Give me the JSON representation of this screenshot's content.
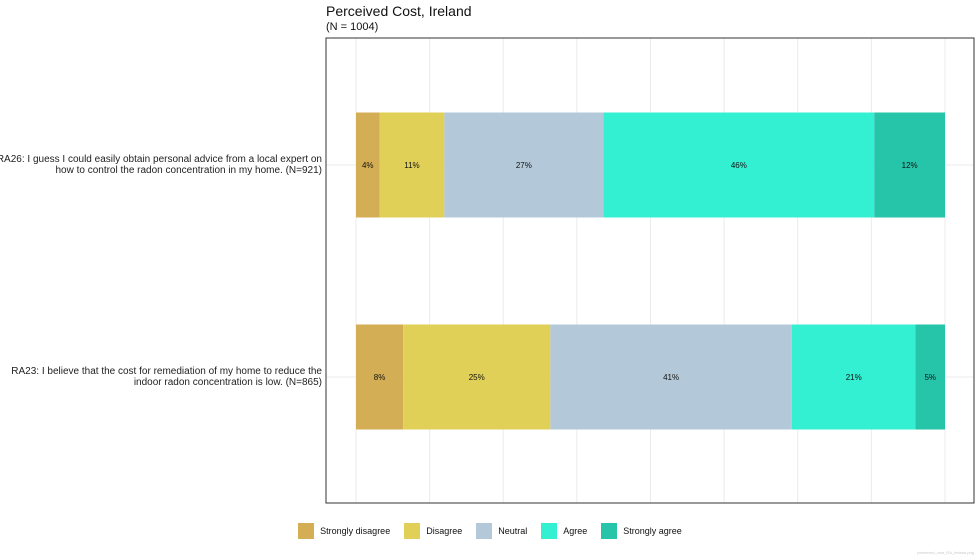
{
  "chart_data": {
    "type": "bar",
    "orientation": "horizontal",
    "stacked": true,
    "title": "Perceived Cost, Ireland",
    "subtitle": "(N = 1004)",
    "categories": [
      "RA26: I guess I could easily obtain personal advice from a local expert on how to control the radon concentration in my home. (N=921)",
      "RA23: I believe that the cost for remediation of my home to reduce the indoor radon concentration is low. (N=865)"
    ],
    "series": [
      {
        "name": "Strongly disagree",
        "color": "#d4ae54",
        "values": [
          4,
          8
        ]
      },
      {
        "name": "Disagree",
        "color": "#e1d057",
        "values": [
          11,
          25
        ]
      },
      {
        "name": "Neutral",
        "color": "#b3c8d8",
        "values": [
          27,
          41
        ]
      },
      {
        "name": "Agree",
        "color": "#34f0d2",
        "values": [
          46,
          21
        ]
      },
      {
        "name": "Strongly agree",
        "color": "#26c4a9",
        "values": [
          12,
          5
        ]
      }
    ],
    "value_suffix": "%",
    "xlim": [
      0,
      100
    ],
    "grid": true,
    "legend_position": "bottom"
  },
  "credit": "perceived_cost_RA_ireland.png"
}
